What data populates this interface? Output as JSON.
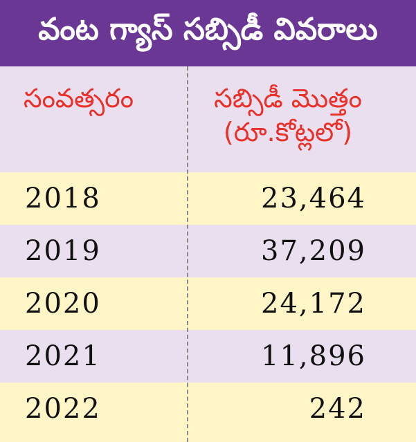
{
  "title": "వంట గ్యాస్ సబ్సిడీ వివరాలు",
  "colors": {
    "title_bg": "#6a3794",
    "header_bg": "#e9dfef",
    "header_text": "#e8312a",
    "row_light": "#fff5c6",
    "row_purple": "#e9dfef"
  },
  "chart_data": {
    "type": "table",
    "title": "వంట గ్యాస్ సబ్సిడీ వివరాలు",
    "columns": [
      "సంవత్సరం",
      "సబ్సిడీ మొత్తం (రూ.కోట్లలో)"
    ],
    "header": {
      "year_label": "సంవత్సరం",
      "amount_label_line1": "సబ్సిడీ మొత్తం",
      "amount_label_line2": "(రూ.కోట్లలో)"
    },
    "rows": [
      {
        "year": "2018",
        "value": "23,464"
      },
      {
        "year": "2019",
        "value": "37,209"
      },
      {
        "year": "2020",
        "value": "24,172"
      },
      {
        "year": "2021",
        "value": "11,896"
      },
      {
        "year": "2022",
        "value": "242"
      }
    ]
  }
}
